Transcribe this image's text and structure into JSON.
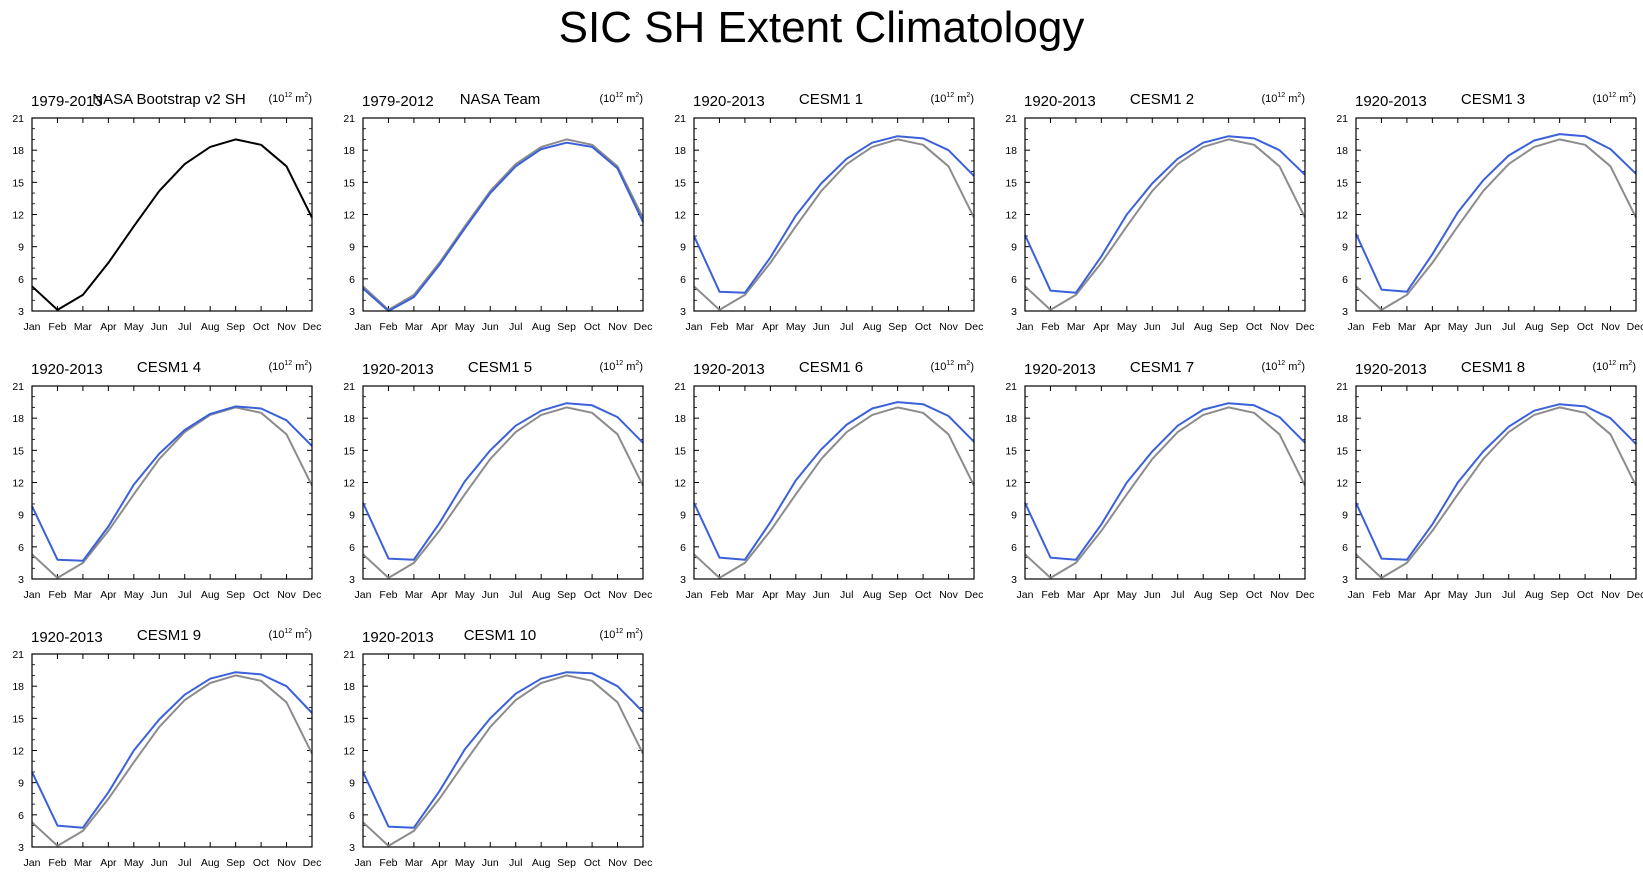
{
  "figure_title": "SIC SH Extent Climatology",
  "colors": {
    "observation": "#000000",
    "reference": "#8c8c8c",
    "model": "#3a61d9",
    "axis": "#000000"
  },
  "chart_data": [
    {
      "type": "line",
      "period": "1979-2013",
      "title": "NASA Bootstrap v2 SH",
      "units_base": "(10",
      "units_exp": "12",
      "units_tail": " m",
      "units_exp2": "2",
      "units_close": ")",
      "categories": [
        "Jan",
        "Feb",
        "Mar",
        "Apr",
        "May",
        "Jun",
        "Jul",
        "Aug",
        "Sep",
        "Oct",
        "Nov",
        "Dec"
      ],
      "yticks": [
        "3",
        "6",
        "9",
        "12",
        "15",
        "18",
        "21"
      ],
      "ylim": [
        3,
        21
      ],
      "series": [
        {
          "name": "NASA Bootstrap v2 SH",
          "role": "observation",
          "values": [
            5.3,
            3.1,
            4.5,
            7.5,
            10.9,
            14.2,
            16.7,
            18.3,
            19.0,
            18.5,
            16.5,
            11.7
          ]
        }
      ]
    },
    {
      "type": "line",
      "period": "1979-2012",
      "title": "NASA Team",
      "units_base": "(10",
      "units_exp": "12",
      "units_tail": " m",
      "units_exp2": "2",
      "units_close": ")",
      "categories": [
        "Jan",
        "Feb",
        "Mar",
        "Apr",
        "May",
        "Jun",
        "Jul",
        "Aug",
        "Sep",
        "Oct",
        "Nov",
        "Dec"
      ],
      "yticks": [
        "3",
        "6",
        "9",
        "12",
        "15",
        "18",
        "21"
      ],
      "ylim": [
        3,
        21
      ],
      "series": [
        {
          "name": "NASA Bootstrap v2 SH",
          "role": "reference",
          "values": [
            5.3,
            3.1,
            4.5,
            7.5,
            10.9,
            14.2,
            16.7,
            18.3,
            19.0,
            18.5,
            16.5,
            11.7
          ]
        },
        {
          "name": "NASA Team",
          "role": "model",
          "values": [
            5.1,
            3.0,
            4.3,
            7.3,
            10.7,
            14.0,
            16.5,
            18.1,
            18.7,
            18.3,
            16.3,
            11.3
          ]
        }
      ]
    },
    {
      "type": "line",
      "period": "1920-2013",
      "title": "CESM1 1",
      "units_base": "(10",
      "units_exp": "12",
      "units_tail": " m",
      "units_exp2": "2",
      "units_close": ")",
      "categories": [
        "Jan",
        "Feb",
        "Mar",
        "Apr",
        "May",
        "Jun",
        "Jul",
        "Aug",
        "Sep",
        "Oct",
        "Nov",
        "Dec"
      ],
      "yticks": [
        "3",
        "6",
        "9",
        "12",
        "15",
        "18",
        "21"
      ],
      "ylim": [
        3,
        21
      ],
      "series": [
        {
          "name": "NASA Bootstrap v2 SH",
          "role": "reference",
          "values": [
            5.3,
            3.1,
            4.5,
            7.5,
            10.9,
            14.2,
            16.7,
            18.3,
            19.0,
            18.5,
            16.5,
            11.7
          ]
        },
        {
          "name": "CESM1 1",
          "role": "model",
          "values": [
            10.0,
            4.8,
            4.7,
            8.0,
            11.9,
            14.9,
            17.2,
            18.7,
            19.3,
            19.1,
            18.0,
            15.6
          ]
        }
      ]
    },
    {
      "type": "line",
      "period": "1920-2013",
      "title": "CESM1 2",
      "units_base": "(10",
      "units_exp": "12",
      "units_tail": " m",
      "units_exp2": "2",
      "units_close": ")",
      "categories": [
        "Jan",
        "Feb",
        "Mar",
        "Apr",
        "May",
        "Jun",
        "Jul",
        "Aug",
        "Sep",
        "Oct",
        "Nov",
        "Dec"
      ],
      "yticks": [
        "3",
        "6",
        "9",
        "12",
        "15",
        "18",
        "21"
      ],
      "ylim": [
        3,
        21
      ],
      "series": [
        {
          "name": "NASA Bootstrap v2 SH",
          "role": "reference",
          "values": [
            5.3,
            3.1,
            4.5,
            7.5,
            10.9,
            14.2,
            16.7,
            18.3,
            19.0,
            18.5,
            16.5,
            11.7
          ]
        },
        {
          "name": "CESM1 2",
          "role": "model",
          "values": [
            10.1,
            4.9,
            4.7,
            8.1,
            12.0,
            14.9,
            17.2,
            18.7,
            19.3,
            19.1,
            18.0,
            15.7
          ]
        }
      ]
    },
    {
      "type": "line",
      "period": "1920-2013",
      "title": "CESM1 3",
      "units_base": "(10",
      "units_exp": "12",
      "units_tail": " m",
      "units_exp2": "2",
      "units_close": ")",
      "categories": [
        "Jan",
        "Feb",
        "Mar",
        "Apr",
        "May",
        "Jun",
        "Jul",
        "Aug",
        "Sep",
        "Oct",
        "Nov",
        "Dec"
      ],
      "yticks": [
        "3",
        "6",
        "9",
        "12",
        "15",
        "18",
        "21"
      ],
      "ylim": [
        3,
        21
      ],
      "series": [
        {
          "name": "NASA Bootstrap v2 SH",
          "role": "reference",
          "values": [
            5.3,
            3.1,
            4.5,
            7.5,
            10.9,
            14.2,
            16.7,
            18.3,
            19.0,
            18.5,
            16.5,
            11.7
          ]
        },
        {
          "name": "CESM1 3",
          "role": "model",
          "values": [
            10.2,
            5.0,
            4.8,
            8.3,
            12.2,
            15.2,
            17.5,
            18.9,
            19.5,
            19.3,
            18.1,
            15.8
          ]
        }
      ]
    },
    {
      "type": "line",
      "period": "1920-2013",
      "title": "CESM1 4",
      "units_base": "(10",
      "units_exp": "12",
      "units_tail": " m",
      "units_exp2": "2",
      "units_close": ")",
      "categories": [
        "Jan",
        "Feb",
        "Mar",
        "Apr",
        "May",
        "Jun",
        "Jul",
        "Aug",
        "Sep",
        "Oct",
        "Nov",
        "Dec"
      ],
      "yticks": [
        "3",
        "6",
        "9",
        "12",
        "15",
        "18",
        "21"
      ],
      "ylim": [
        3,
        21
      ],
      "series": [
        {
          "name": "NASA Bootstrap v2 SH",
          "role": "reference",
          "values": [
            5.3,
            3.1,
            4.5,
            7.5,
            10.9,
            14.2,
            16.7,
            18.3,
            19.0,
            18.5,
            16.5,
            11.7
          ]
        },
        {
          "name": "CESM1 4",
          "role": "model",
          "values": [
            9.8,
            4.8,
            4.7,
            7.9,
            11.8,
            14.7,
            16.9,
            18.4,
            19.1,
            18.9,
            17.8,
            15.4
          ]
        }
      ]
    },
    {
      "type": "line",
      "period": "1920-2013",
      "title": "CESM1 5",
      "units_base": "(10",
      "units_exp": "12",
      "units_tail": " m",
      "units_exp2": "2",
      "units_close": ")",
      "categories": [
        "Jan",
        "Feb",
        "Mar",
        "Apr",
        "May",
        "Jun",
        "Jul",
        "Aug",
        "Sep",
        "Oct",
        "Nov",
        "Dec"
      ],
      "yticks": [
        "3",
        "6",
        "9",
        "12",
        "15",
        "18",
        "21"
      ],
      "ylim": [
        3,
        21
      ],
      "series": [
        {
          "name": "NASA Bootstrap v2 SH",
          "role": "reference",
          "values": [
            5.3,
            3.1,
            4.5,
            7.5,
            10.9,
            14.2,
            16.7,
            18.3,
            19.0,
            18.5,
            16.5,
            11.7
          ]
        },
        {
          "name": "CESM1 5",
          "role": "model",
          "values": [
            10.1,
            4.9,
            4.8,
            8.2,
            12.1,
            15.0,
            17.3,
            18.7,
            19.4,
            19.2,
            18.1,
            15.7
          ]
        }
      ]
    },
    {
      "type": "line",
      "period": "1920-2013",
      "title": "CESM1 6",
      "units_base": "(10",
      "units_exp": "12",
      "units_tail": " m",
      "units_exp2": "2",
      "units_close": ")",
      "categories": [
        "Jan",
        "Feb",
        "Mar",
        "Apr",
        "May",
        "Jun",
        "Jul",
        "Aug",
        "Sep",
        "Oct",
        "Nov",
        "Dec"
      ],
      "yticks": [
        "3",
        "6",
        "9",
        "12",
        "15",
        "18",
        "21"
      ],
      "ylim": [
        3,
        21
      ],
      "series": [
        {
          "name": "NASA Bootstrap v2 SH",
          "role": "reference",
          "values": [
            5.3,
            3.1,
            4.5,
            7.5,
            10.9,
            14.2,
            16.7,
            18.3,
            19.0,
            18.5,
            16.5,
            11.7
          ]
        },
        {
          "name": "CESM1 6",
          "role": "model",
          "values": [
            10.1,
            5.0,
            4.8,
            8.3,
            12.2,
            15.1,
            17.4,
            18.9,
            19.5,
            19.3,
            18.2,
            15.8
          ]
        }
      ]
    },
    {
      "type": "line",
      "period": "1920-2013",
      "title": "CESM1 7",
      "units_base": "(10",
      "units_exp": "12",
      "units_tail": " m",
      "units_exp2": "2",
      "units_close": ")",
      "categories": [
        "Jan",
        "Feb",
        "Mar",
        "Apr",
        "May",
        "Jun",
        "Jul",
        "Aug",
        "Sep",
        "Oct",
        "Nov",
        "Dec"
      ],
      "yticks": [
        "3",
        "6",
        "9",
        "12",
        "15",
        "18",
        "21"
      ],
      "ylim": [
        3,
        21
      ],
      "series": [
        {
          "name": "NASA Bootstrap v2 SH",
          "role": "reference",
          "values": [
            5.3,
            3.1,
            4.5,
            7.5,
            10.9,
            14.2,
            16.7,
            18.3,
            19.0,
            18.5,
            16.5,
            11.7
          ]
        },
        {
          "name": "CESM1 7",
          "role": "model",
          "values": [
            10.1,
            5.0,
            4.8,
            8.1,
            12.0,
            14.9,
            17.3,
            18.8,
            19.4,
            19.2,
            18.1,
            15.7
          ]
        }
      ]
    },
    {
      "type": "line",
      "period": "1920-2013",
      "title": "CESM1 8",
      "units_base": "(10",
      "units_exp": "12",
      "units_tail": " m",
      "units_exp2": "2",
      "units_close": ")",
      "categories": [
        "Jan",
        "Feb",
        "Mar",
        "Apr",
        "May",
        "Jun",
        "Jul",
        "Aug",
        "Sep",
        "Oct",
        "Nov",
        "Dec"
      ],
      "yticks": [
        "3",
        "6",
        "9",
        "12",
        "15",
        "18",
        "21"
      ],
      "ylim": [
        3,
        21
      ],
      "series": [
        {
          "name": "NASA Bootstrap v2 SH",
          "role": "reference",
          "values": [
            5.3,
            3.1,
            4.5,
            7.5,
            10.9,
            14.2,
            16.7,
            18.3,
            19.0,
            18.5,
            16.5,
            11.7
          ]
        },
        {
          "name": "CESM1 8",
          "role": "model",
          "values": [
            10.1,
            4.9,
            4.8,
            8.1,
            12.0,
            14.9,
            17.2,
            18.7,
            19.3,
            19.1,
            18.0,
            15.6
          ]
        }
      ]
    },
    {
      "type": "line",
      "period": "1920-2013",
      "title": "CESM1 9",
      "units_base": "(10",
      "units_exp": "12",
      "units_tail": " m",
      "units_exp2": "2",
      "units_close": ")",
      "categories": [
        "Jan",
        "Feb",
        "Mar",
        "Apr",
        "May",
        "Jun",
        "Jul",
        "Aug",
        "Sep",
        "Oct",
        "Nov",
        "Dec"
      ],
      "yticks": [
        "3",
        "6",
        "9",
        "12",
        "15",
        "18",
        "21"
      ],
      "ylim": [
        3,
        21
      ],
      "series": [
        {
          "name": "NASA Bootstrap v2 SH",
          "role": "reference",
          "values": [
            5.3,
            3.1,
            4.5,
            7.5,
            10.9,
            14.2,
            16.7,
            18.3,
            19.0,
            18.5,
            16.5,
            11.7
          ]
        },
        {
          "name": "CESM1 9",
          "role": "model",
          "values": [
            10.0,
            5.0,
            4.8,
            8.1,
            12.0,
            14.9,
            17.2,
            18.7,
            19.3,
            19.1,
            18.0,
            15.5
          ]
        }
      ]
    },
    {
      "type": "line",
      "period": "1920-2013",
      "title": "CESM1 10",
      "units_base": "(10",
      "units_exp": "12",
      "units_tail": " m",
      "units_exp2": "2",
      "units_close": ")",
      "categories": [
        "Jan",
        "Feb",
        "Mar",
        "Apr",
        "May",
        "Jun",
        "Jul",
        "Aug",
        "Sep",
        "Oct",
        "Nov",
        "Dec"
      ],
      "yticks": [
        "3",
        "6",
        "9",
        "12",
        "15",
        "18",
        "21"
      ],
      "ylim": [
        3,
        21
      ],
      "series": [
        {
          "name": "NASA Bootstrap v2 SH",
          "role": "reference",
          "values": [
            5.3,
            3.1,
            4.5,
            7.5,
            10.9,
            14.2,
            16.7,
            18.3,
            19.0,
            18.5,
            16.5,
            11.7
          ]
        },
        {
          "name": "CESM1 10",
          "role": "model",
          "values": [
            10.0,
            4.9,
            4.8,
            8.2,
            12.1,
            15.0,
            17.3,
            18.7,
            19.3,
            19.2,
            18.0,
            15.6
          ]
        }
      ]
    }
  ]
}
